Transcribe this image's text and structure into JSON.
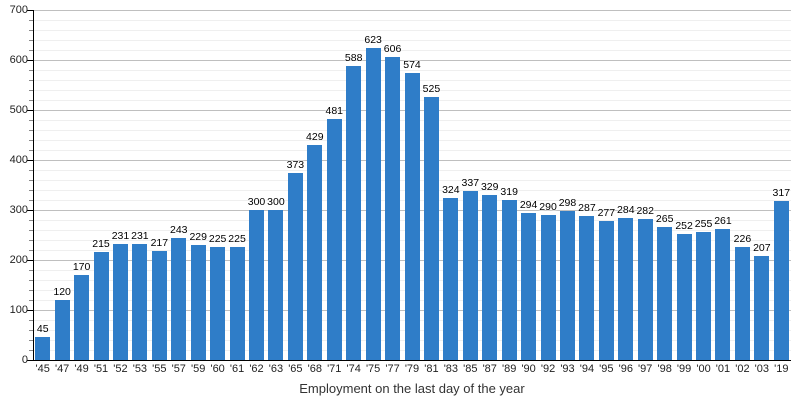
{
  "chart_data": {
    "type": "bar",
    "categories": [
      "'45",
      "'47",
      "'49",
      "'51",
      "'52",
      "'53",
      "'55",
      "'57",
      "'59",
      "'60",
      "'61",
      "'62",
      "'63",
      "'65",
      "'68",
      "'71",
      "'74",
      "'75",
      "'77",
      "'79",
      "'81",
      "'83",
      "'85",
      "'87",
      "'89",
      "'90",
      "'92",
      "'93",
      "'94",
      "'95",
      "'96",
      "'97",
      "'98",
      "'99",
      "'00",
      "'01",
      "'02",
      "'03",
      "'19"
    ],
    "values": [
      45,
      120,
      170,
      215,
      231,
      231,
      217,
      243,
      229,
      225,
      225,
      300,
      300,
      373,
      429,
      481,
      588,
      623,
      606,
      574,
      525,
      324,
      337,
      329,
      319,
      294,
      290,
      298,
      287,
      277,
      284,
      282,
      265,
      252,
      255,
      261,
      226,
      207,
      317
    ],
    "title": "",
    "xlabel": "Employment on the last day of the year",
    "ylabel": "",
    "ylim": [
      0,
      700
    ],
    "y_major_step": 100,
    "y_minor_step": 20,
    "grid": true,
    "legend": false,
    "data_labels": true,
    "colors": {
      "bar": "#2f7dc8",
      "major_grid": "#bfbfbf",
      "minor_grid": "#efefef",
      "axis": "#000000",
      "text": "#222222"
    }
  }
}
